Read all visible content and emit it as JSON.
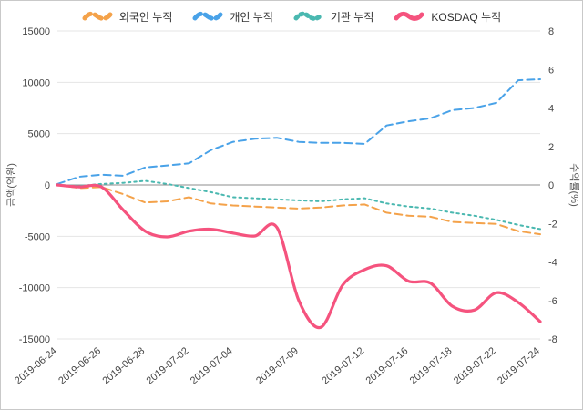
{
  "chart_data": {
    "type": "line",
    "x": [
      "2019-06-24",
      "2019-06-25",
      "2019-06-26",
      "2019-06-27",
      "2019-06-28",
      "2019-07-01",
      "2019-07-02",
      "2019-07-03",
      "2019-07-04",
      "2019-07-05",
      "2019-07-08",
      "2019-07-09",
      "2019-07-10",
      "2019-07-11",
      "2019-07-12",
      "2019-07-15",
      "2019-07-16",
      "2019-07-17",
      "2019-07-18",
      "2019-07-19",
      "2019-07-22",
      "2019-07-23",
      "2019-07-24"
    ],
    "x_tick_labels": [
      "2019-06-24",
      "2019-06-26",
      "2019-06-28",
      "2019-07-02",
      "2019-07-04",
      "2019-07-09",
      "2019-07-12",
      "2019-07-16",
      "2019-07-18",
      "2019-07-22",
      "2019-07-24"
    ],
    "series": [
      {
        "name": "외국인 누적",
        "axis": "left",
        "color": "#f4a24a",
        "dash": "8 5",
        "width": 2,
        "smooth": false,
        "values": [
          0,
          -300,
          -200,
          -900,
          -1700,
          -1600,
          -1200,
          -1800,
          -2000,
          -2100,
          -2200,
          -2300,
          -2200,
          -2000,
          -1900,
          -2700,
          -3000,
          -3100,
          -3600,
          -3700,
          -3800,
          -4500,
          -4800
        ]
      },
      {
        "name": "개인 누적",
        "axis": "left",
        "color": "#49a2e8",
        "dash": "8 5",
        "width": 2,
        "smooth": false,
        "values": [
          100,
          800,
          1000,
          900,
          1700,
          1900,
          2100,
          3400,
          4200,
          4500,
          4600,
          4200,
          4100,
          4100,
          4000,
          5800,
          6200,
          6500,
          7300,
          7500,
          8000,
          10200,
          10300
        ]
      },
      {
        "name": "기관 누적",
        "axis": "left",
        "color": "#4ab8b0",
        "dash": "2.5 4",
        "width": 2,
        "smooth": false,
        "values": [
          0,
          -100,
          100,
          200,
          400,
          100,
          -300,
          -700,
          -1200,
          -1300,
          -1400,
          -1500,
          -1600,
          -1400,
          -1300,
          -1800,
          -2100,
          -2300,
          -2700,
          -3000,
          -3400,
          -3900,
          -4300
        ]
      },
      {
        "name": "KOSDAQ 누적",
        "axis": "right",
        "color": "#f5537e",
        "dash": null,
        "width": 3.2,
        "smooth": true,
        "values": [
          0,
          -0.1,
          -0.1,
          -1.3,
          -2.4,
          -2.7,
          -2.4,
          -2.3,
          -2.5,
          -2.65,
          -2.2,
          -6.0,
          -7.4,
          -5.2,
          -4.4,
          -4.2,
          -5.0,
          -5.1,
          -6.3,
          -6.5,
          -5.6,
          -6.1,
          -7.1
        ]
      }
    ],
    "left_axis": {
      "label": "금액(억원)",
      "min": -15000,
      "max": 15000,
      "ticks": [
        15000,
        10000,
        5000,
        0,
        -5000,
        -10000,
        -15000
      ]
    },
    "right_axis": {
      "label": "수익률(%)",
      "min": -8,
      "max": 8,
      "ticks": [
        8,
        6,
        4,
        2,
        0,
        -2,
        -4,
        -6,
        -8
      ]
    },
    "grid": true,
    "legend_position": "top",
    "colors": {
      "grid": "#e4e4e4",
      "zero_line": "#8c8c8c",
      "tick_text": "#454545"
    }
  }
}
